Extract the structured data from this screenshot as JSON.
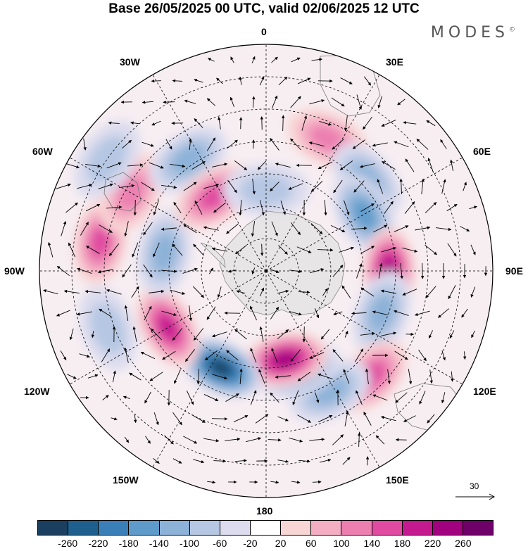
{
  "header": {
    "title": "Base 26/05/2025 00 UTC, valid 02/06/2025 12 UTC",
    "brand": "MODES",
    "brand_mark": "©"
  },
  "map": {
    "projection": "south polar stereographic",
    "longitude_labels": {
      "top": "0",
      "top_right": "30E",
      "upper_right": "60E",
      "right": "90E",
      "lower_right": "120E",
      "bottom_right": "150E",
      "bottom": "180",
      "bottom_left": "150W",
      "lower_left": "120W",
      "left": "90W",
      "upper_left": "60W",
      "top_left": "30W"
    },
    "reference_vector": {
      "label": "30"
    },
    "anomaly_centers": [
      {
        "sign": "positive",
        "lon": 25,
        "lat": -45,
        "magnitude": 120
      },
      {
        "sign": "negative",
        "lon": 48,
        "lat": -48,
        "magnitude": -120
      },
      {
        "sign": "negative",
        "lon": 60,
        "lat": -55,
        "magnitude": -140
      },
      {
        "sign": "positive",
        "lon": 90,
        "lat": -52,
        "magnitude": 220
      },
      {
        "sign": "negative",
        "lon": 110,
        "lat": -52,
        "magnitude": -100
      },
      {
        "sign": "positive",
        "lon": 135,
        "lat": -44,
        "magnitude": 140
      },
      {
        "sign": "negative",
        "lon": 152,
        "lat": -48,
        "magnitude": -120
      },
      {
        "sign": "negative",
        "lon": 162,
        "lat": -58,
        "magnitude": -140
      },
      {
        "sign": "positive",
        "lon": 168,
        "lat": -62,
        "magnitude": 240
      },
      {
        "sign": "negative",
        "lon": -155,
        "lat": -57,
        "magnitude": -260
      },
      {
        "sign": "positive",
        "lon": -120,
        "lat": -55,
        "magnitude": 200
      },
      {
        "sign": "negative",
        "lon": -110,
        "lat": -38,
        "magnitude": -80
      },
      {
        "sign": "negative",
        "lon": -80,
        "lat": -58,
        "magnitude": -100
      },
      {
        "sign": "positive",
        "lon": -80,
        "lat": -38,
        "magnitude": 140
      },
      {
        "sign": "positive",
        "lon": -60,
        "lat": -42,
        "magnitude": 100
      },
      {
        "sign": "negative",
        "lon": -55,
        "lat": -30,
        "magnitude": -80
      },
      {
        "sign": "negative",
        "lon": -35,
        "lat": -48,
        "magnitude": -100
      },
      {
        "sign": "positive",
        "lon": -35,
        "lat": -62,
        "magnitude": 160
      },
      {
        "sign": "negative",
        "lon": 0,
        "lat": -65,
        "magnitude": -60
      }
    ]
  },
  "colorbar": {
    "ticks": [
      "-260",
      "-220",
      "-180",
      "-140",
      "-100",
      "-60",
      "-20",
      "20",
      "60",
      "100",
      "140",
      "180",
      "220",
      "260"
    ],
    "colors": [
      "#1b3f5e",
      "#1f5f8e",
      "#3b7fb8",
      "#5e9bcb",
      "#8db2d8",
      "#b6c7e3",
      "#dcdcee",
      "#ffffff",
      "#f8d6d6",
      "#f4aec4",
      "#ec7fb0",
      "#e04aa0",
      "#c5198f",
      "#a1007f",
      "#6f006a"
    ]
  }
}
